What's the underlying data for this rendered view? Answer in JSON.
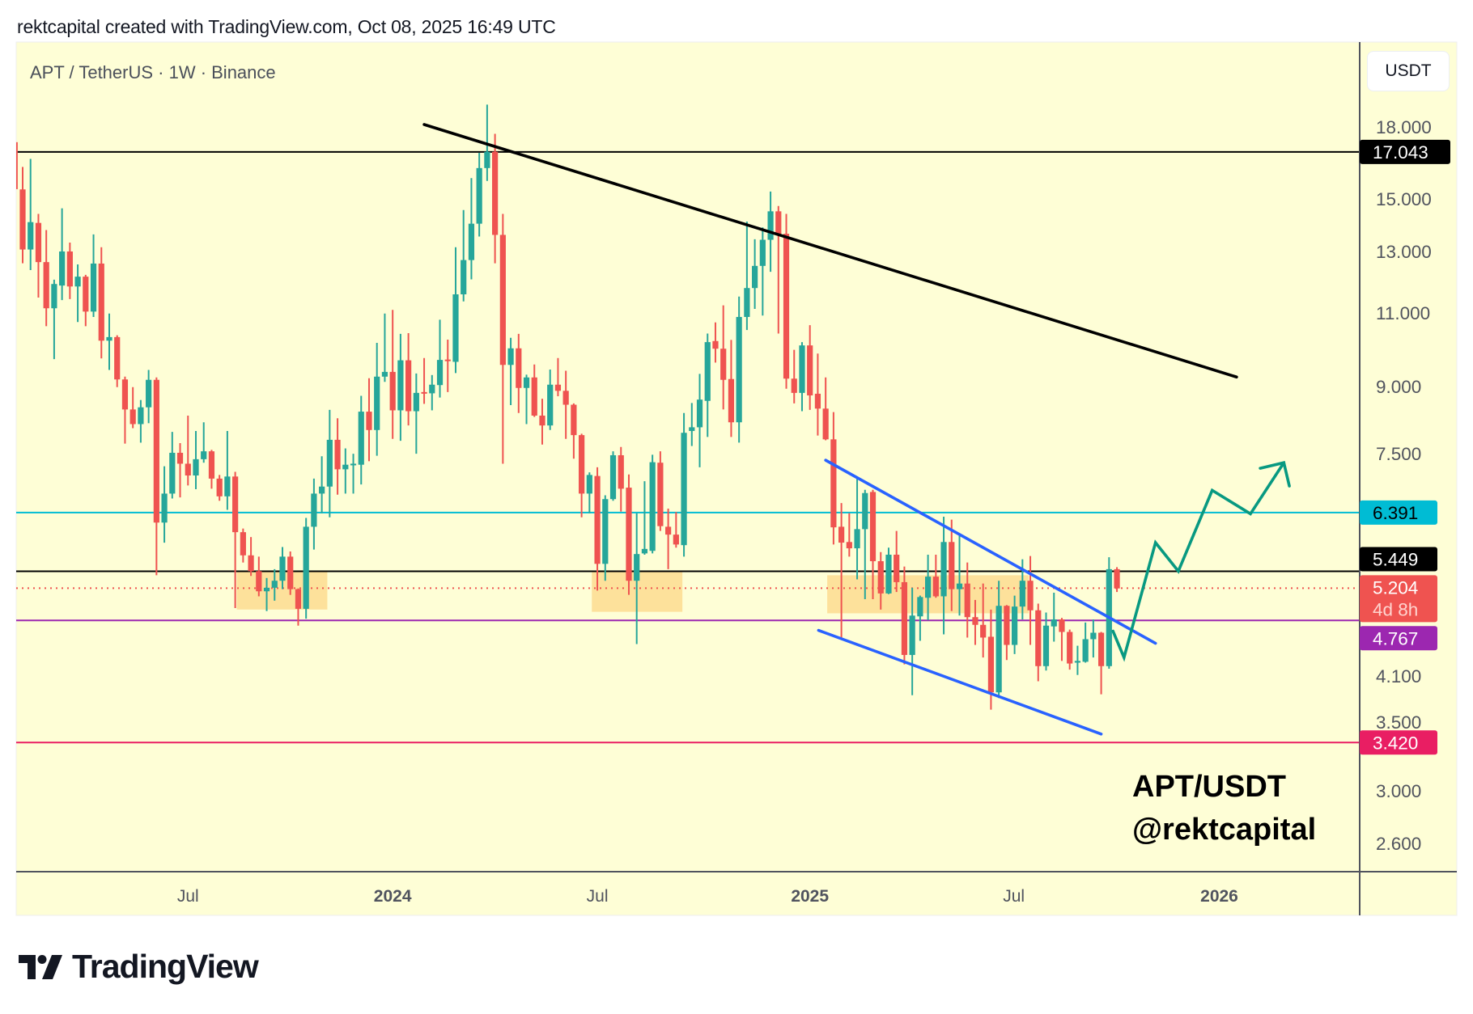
{
  "header": {
    "caption": "rektcapital created with TradingView.com, Oct 08, 2025 16:49 UTC"
  },
  "legend": {
    "symbol": "APT / TetherUS · 1W · Binance"
  },
  "currency_button": "USDT",
  "watermark": {
    "line1": "APT/USDT",
    "line2": "@rektcapital"
  },
  "branding": {
    "logo_text": "TradingView"
  },
  "colors": {
    "background": "#fefed6",
    "up": "#26a69a",
    "down": "#ef5350",
    "zone": "#fddf98",
    "trend_black": "#000000",
    "channel_blue": "#2962ff",
    "projection_green": "#089981",
    "axis": "#50535e"
  },
  "chart_data": {
    "type": "candlestick",
    "title": "APT / TetherUS · 1W · Binance",
    "scale": "log",
    "ylim": [
      2.5,
      19.5
    ],
    "xlim_bar_index": [
      1,
      175
    ],
    "grid": false,
    "price_ticks": [
      {
        "value": 18,
        "label": "18.000"
      },
      {
        "value": 15,
        "label": "15.000"
      },
      {
        "value": 13,
        "label": "13.000"
      },
      {
        "value": 11,
        "label": "11.000"
      },
      {
        "value": 9,
        "label": "9.000"
      },
      {
        "value": 7.5,
        "label": "7.500"
      },
      {
        "value": 4.1,
        "label": "4.100"
      },
      {
        "value": 3.5,
        "label": "3.500"
      },
      {
        "value": 3.0,
        "label": "3.000"
      },
      {
        "value": 2.6,
        "label": "2.600"
      }
    ],
    "time_ticks": [
      {
        "bar": 23.0,
        "label": "Jul",
        "year": false
      },
      {
        "bar": 49.0,
        "label": "2024",
        "year": true
      },
      {
        "bar": 75.0,
        "label": "Jul",
        "year": false
      },
      {
        "bar": 102.0,
        "label": "2025",
        "year": true
      },
      {
        "bar": 127.9,
        "label": "Jul",
        "year": false
      },
      {
        "bar": 154.0,
        "label": "2026",
        "year": true
      }
    ],
    "candles_ohlc": [
      [
        17.5,
        18.3,
        15.4,
        15.4
      ],
      [
        15.39,
        16.36,
        12.59,
        13.07
      ],
      [
        13.07,
        16.72,
        12.36,
        14.08
      ],
      [
        14.05,
        14.4,
        11.47,
        12.63
      ],
      [
        12.63,
        13.78,
        10.61,
        11.14
      ],
      [
        11.14,
        12.04,
        9.7,
        11.9
      ],
      [
        11.85,
        14.62,
        11.39,
        13.0
      ],
      [
        13.0,
        13.32,
        11.42,
        11.82
      ],
      [
        11.82,
        12.55,
        10.73,
        12.14
      ],
      [
        12.14,
        12.2,
        10.61,
        11.04
      ],
      [
        11.04,
        13.62,
        10.88,
        12.58
      ],
      [
        12.58,
        13.15,
        9.72,
        10.2
      ],
      [
        10.2,
        10.98,
        9.42,
        10.3
      ],
      [
        10.3,
        10.35,
        8.99,
        9.18
      ],
      [
        9.18,
        9.25,
        7.71,
        8.46
      ],
      [
        8.46,
        8.99,
        8.04,
        8.13
      ],
      [
        8.13,
        8.68,
        7.73,
        8.51
      ],
      [
        8.51,
        9.42,
        8.15,
        9.17
      ],
      [
        9.17,
        9.23,
        5.39,
        6.22
      ],
      [
        6.22,
        7.25,
        5.89,
        6.73
      ],
      [
        6.73,
        7.96,
        6.64,
        7.52
      ],
      [
        7.52,
        7.72,
        6.66,
        7.3
      ],
      [
        7.3,
        8.32,
        6.88,
        7.07
      ],
      [
        7.07,
        7.98,
        6.81,
        7.39
      ],
      [
        7.39,
        8.17,
        7.32,
        7.55
      ],
      [
        7.55,
        7.58,
        6.82,
        7.01
      ],
      [
        7.01,
        7.08,
        6.6,
        6.68
      ],
      [
        6.68,
        7.98,
        6.44,
        7.05
      ],
      [
        7.05,
        7.14,
        4.93,
        6.06
      ],
      [
        6.06,
        6.12,
        5.58,
        5.69
      ],
      [
        5.69,
        5.98,
        5.38,
        5.45
      ],
      [
        5.45,
        5.67,
        5.09,
        5.16
      ],
      [
        5.16,
        5.35,
        4.89,
        5.21
      ],
      [
        5.21,
        5.48,
        5.03,
        5.31
      ],
      [
        5.31,
        5.82,
        5.19,
        5.67
      ],
      [
        5.67,
        5.75,
        5.11,
        5.19
      ],
      [
        5.19,
        5.2,
        4.7,
        4.92
      ],
      [
        4.92,
        6.3,
        4.79,
        6.15
      ],
      [
        6.15,
        7.01,
        5.78,
        6.73
      ],
      [
        6.73,
        7.45,
        6.38,
        6.86
      ],
      [
        6.86,
        8.45,
        6.31,
        7.79
      ],
      [
        7.79,
        8.26,
        6.71,
        7.19
      ],
      [
        7.19,
        7.61,
        6.73,
        7.28
      ],
      [
        7.27,
        7.5,
        6.73,
        7.3
      ],
      [
        7.28,
        8.78,
        6.9,
        8.41
      ],
      [
        8.41,
        9.21,
        7.35,
        8.0
      ],
      [
        8.0,
        10.14,
        7.46,
        9.25
      ],
      [
        9.25,
        10.98,
        9.12,
        9.37
      ],
      [
        9.37,
        11.09,
        7.81,
        8.44
      ],
      [
        8.44,
        10.39,
        7.77,
        9.67
      ],
      [
        9.67,
        10.41,
        8.1,
        8.42
      ],
      [
        8.42,
        9.33,
        7.5,
        8.85
      ],
      [
        8.87,
        9.73,
        8.59,
        8.84
      ],
      [
        8.84,
        9.29,
        8.44,
        9.05
      ],
      [
        9.04,
        10.8,
        8.74,
        9.68
      ],
      [
        9.69,
        10.23,
        8.87,
        9.68
      ],
      [
        9.63,
        13.15,
        9.34,
        11.57
      ],
      [
        11.57,
        14.55,
        11.35,
        12.7
      ],
      [
        12.7,
        15.87,
        12.05,
        14.02
      ],
      [
        14.02,
        17.0,
        13.54,
        16.31
      ],
      [
        16.31,
        19.38,
        15.75,
        17.05
      ],
      [
        17.05,
        17.9,
        12.59,
        13.6
      ],
      [
        13.6,
        14.4,
        7.3,
        9.55
      ],
      [
        9.55,
        10.28,
        8.56,
        9.99
      ],
      [
        9.99,
        10.39,
        8.38,
        8.97
      ],
      [
        8.97,
        9.3,
        8.13,
        9.23
      ],
      [
        9.23,
        9.56,
        8.29,
        8.32
      ],
      [
        8.32,
        8.71,
        7.69,
        8.1
      ],
      [
        8.1,
        9.43,
        8.0,
        9.05
      ],
      [
        9.05,
        9.73,
        8.77,
        8.9
      ],
      [
        8.9,
        9.4,
        7.81,
        8.57
      ],
      [
        8.57,
        8.6,
        7.4,
        7.89
      ],
      [
        7.89,
        7.92,
        6.31,
        6.73
      ],
      [
        6.73,
        7.13,
        6.38,
        7.08
      ],
      [
        7.06,
        7.23,
        5.17,
        5.56
      ],
      [
        5.56,
        6.7,
        5.31,
        6.63
      ],
      [
        6.63,
        7.55,
        6.6,
        7.47
      ],
      [
        7.47,
        7.64,
        6.41,
        6.82
      ],
      [
        6.84,
        7.09,
        5.11,
        5.31
      ],
      [
        5.31,
        6.38,
        4.47,
        5.71
      ],
      [
        5.72,
        6.96,
        5.7,
        5.79
      ],
      [
        5.76,
        7.48,
        5.72,
        7.33
      ],
      [
        7.32,
        7.55,
        6.08,
        6.16
      ],
      [
        6.15,
        6.46,
        5.48,
        6.02
      ],
      [
        6.02,
        6.4,
        5.81,
        5.86
      ],
      [
        5.85,
        8.38,
        5.67,
        7.94
      ],
      [
        7.98,
        8.61,
        7.66,
        8.06
      ],
      [
        8.06,
        9.32,
        7.23,
        8.69
      ],
      [
        8.66,
        10.4,
        7.85,
        10.16
      ],
      [
        10.19,
        10.72,
        9.61,
        9.98
      ],
      [
        9.98,
        11.23,
        8.46,
        9.17
      ],
      [
        9.19,
        10.22,
        7.85,
        8.17
      ],
      [
        8.17,
        11.5,
        7.73,
        10.88
      ],
      [
        10.88,
        14.1,
        10.5,
        11.77
      ],
      [
        11.77,
        13.44,
        11.12,
        12.5
      ],
      [
        12.5,
        13.88,
        10.92,
        13.42
      ],
      [
        13.42,
        15.3,
        12.3,
        14.5
      ],
      [
        14.5,
        14.71,
        10.4,
        13.62
      ],
      [
        13.64,
        14.4,
        8.95,
        9.2
      ],
      [
        9.2,
        9.95,
        8.6,
        8.85
      ],
      [
        8.85,
        10.16,
        8.42,
        10.07
      ],
      [
        10.07,
        10.64,
        8.45,
        8.79
      ],
      [
        8.83,
        9.85,
        7.88,
        8.48
      ],
      [
        8.48,
        9.23,
        7.78,
        7.8
      ],
      [
        7.8,
        8.4,
        5.86,
        6.14
      ],
      [
        6.15,
        6.56,
        4.55,
        5.89
      ],
      [
        5.9,
        6.38,
        5.67,
        5.8
      ],
      [
        5.8,
        7.05,
        5.33,
        6.11
      ],
      [
        6.11,
        6.8,
        5.05,
        6.74
      ],
      [
        6.76,
        6.8,
        5.05,
        5.6
      ],
      [
        5.6,
        5.74,
        4.91,
        5.13
      ],
      [
        5.13,
        5.81,
        5.12,
        5.7
      ],
      [
        5.7,
        6.08,
        5.15,
        5.29
      ],
      [
        5.29,
        5.52,
        4.23,
        4.34
      ],
      [
        4.34,
        5.21,
        3.89,
        4.83
      ],
      [
        4.82,
        5.1,
        4.51,
        5.08
      ],
      [
        5.07,
        5.7,
        4.77,
        5.37
      ],
      [
        5.37,
        5.7,
        5.07,
        5.09
      ],
      [
        5.09,
        6.32,
        4.59,
        5.9
      ],
      [
        5.9,
        6.27,
        4.89,
        5.19
      ],
      [
        5.19,
        6.0,
        4.83,
        5.27
      ],
      [
        5.27,
        5.58,
        4.55,
        4.81
      ],
      [
        4.81,
        5.04,
        4.46,
        4.71
      ],
      [
        4.71,
        5.27,
        4.31,
        4.55
      ],
      [
        4.56,
        4.91,
        3.74,
        3.92
      ],
      [
        3.92,
        5.31,
        3.86,
        4.96
      ],
      [
        4.96,
        4.97,
        4.28,
        4.46
      ],
      [
        4.46,
        5.1,
        4.35,
        4.95
      ],
      [
        4.95,
        5.63,
        4.78,
        5.31
      ],
      [
        5.31,
        5.68,
        4.46,
        4.9
      ],
      [
        4.9,
        4.99,
        4.04,
        4.21
      ],
      [
        4.21,
        4.87,
        4.16,
        4.7
      ],
      [
        4.69,
        5.14,
        4.5,
        4.78
      ],
      [
        4.78,
        4.8,
        4.27,
        4.62
      ],
      [
        4.62,
        4.65,
        4.17,
        4.24
      ],
      [
        4.25,
        4.45,
        4.11,
        4.27
      ],
      [
        4.26,
        4.74,
        4.25,
        4.53
      ],
      [
        4.53,
        4.78,
        4.31,
        4.61
      ],
      [
        4.61,
        4.62,
        3.9,
        4.21
      ],
      [
        4.21,
        5.66,
        4.18,
        5.48
      ],
      [
        5.48,
        5.51,
        5.15,
        5.2
      ]
    ],
    "horizontal_levels": [
      {
        "price": 17.043,
        "label": "17.043",
        "color": "#000000",
        "text_color": "#ffffff",
        "style": "solid"
      },
      {
        "price": 6.391,
        "label": "6.391",
        "color": "#00bcd4",
        "text_color": "#000000",
        "style": "solid"
      },
      {
        "price": 5.449,
        "label": "5.449",
        "color": "#000000",
        "text_color": "#ffffff",
        "style": "solid"
      },
      {
        "price": 5.204,
        "label": "5.204",
        "sublabel": "4d 8h",
        "color": "#ef5350",
        "text_color": "#ffffff",
        "style": "dotted"
      },
      {
        "price": 4.767,
        "label": "4.767",
        "color": "#9c27b0",
        "text_color": "#ffffff",
        "style": "solid"
      },
      {
        "price": 3.42,
        "label": "3.420",
        "color": "#e91e63",
        "text_color": "#ffffff",
        "style": "solid"
      }
    ],
    "current_price": 5.204,
    "time_to_close": "4d 8h",
    "trendlines": [
      {
        "name": "descending-resistance",
        "color": "#000000",
        "points": [
          [
            53.0,
            18.36
          ],
          [
            156.2,
            9.24
          ]
        ]
      },
      {
        "name": "channel-upper",
        "color": "#2962ff",
        "points": [
          [
            104.0,
            7.37
          ],
          [
            145.9,
            4.48
          ]
        ]
      },
      {
        "name": "channel-lower",
        "color": "#2962ff",
        "points": [
          [
            103.1,
            4.64
          ],
          [
            139.0,
            3.5
          ]
        ]
      }
    ],
    "support_zones": [
      {
        "bars": [
          29.2,
          40.7
        ],
        "prices": [
          4.91,
          5.449
        ]
      },
      {
        "bars": [
          74.3,
          85.8
        ],
        "prices": [
          4.88,
          5.45
        ]
      },
      {
        "bars": [
          104.2,
          129.8
        ],
        "prices": [
          4.86,
          5.39
        ]
      }
    ],
    "projection_path": {
      "points": [
        [
          140.5,
          4.63
        ],
        [
          141.9,
          4.31
        ],
        [
          145.9,
          5.89
        ],
        [
          148.8,
          5.45
        ],
        [
          153.1,
          6.79
        ],
        [
          157.96,
          6.37
        ],
        [
          162.2,
          7.32
        ]
      ],
      "arrowhead": [
        [
          159.2,
          7.21
        ],
        [
          162.2,
          7.32
        ],
        [
          162.9,
          6.87
        ]
      ]
    }
  }
}
